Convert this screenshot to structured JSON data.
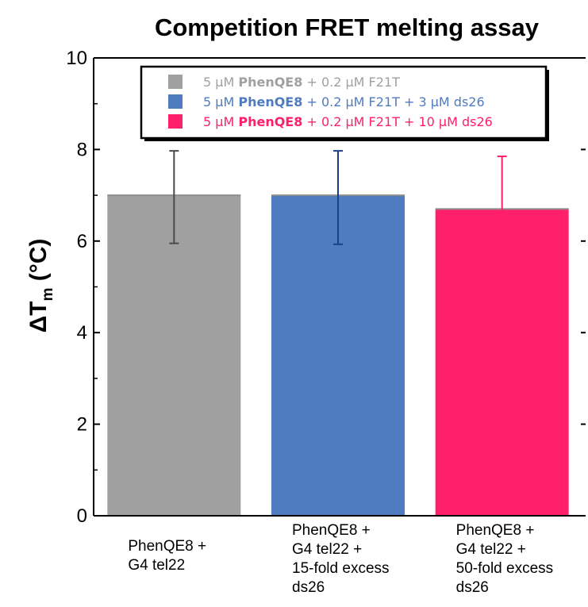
{
  "chart_data": {
    "type": "bar",
    "title": "Competition FRET melting assay",
    "ylabel": {
      "symbol": "ΔT",
      "subscript": "m",
      "unit": "(°C)"
    },
    "ylim": [
      0,
      10
    ],
    "yticks": [
      "0",
      "2",
      "4",
      "6",
      "8",
      "10"
    ],
    "categories": [
      [
        "PhenQE8 +",
        "G4 tel22"
      ],
      [
        "PhenQE8 +",
        "G4 tel22 +",
        "15-fold excess",
        "ds26"
      ],
      [
        "PhenQE8 +",
        "G4 tel22 +",
        "50-fold excess",
        "ds26"
      ]
    ],
    "values": [
      7.0,
      7.0,
      6.7
    ],
    "errors": [
      [
        5.95,
        7.97
      ],
      [
        5.93,
        7.97
      ],
      [
        5.52,
        7.85
      ]
    ],
    "colors": [
      "#a0a0a0",
      "#4f7cc0",
      "#ff1f6b"
    ],
    "error_colors": [
      "#4a4a4a",
      "#1c3f8a",
      "#ff1f6b"
    ],
    "legend": {
      "position": "top-center",
      "entries": [
        {
          "pre": "5 μM ",
          "bold": "PhenQE8",
          "post": " + 0.2 μM F21T",
          "color": "#a0a0a0"
        },
        {
          "pre": "5 μM ",
          "bold": "PhenQE8",
          "post": " + 0.2 μM F21T + 3 μM ds26",
          "color": "#4f7cc0"
        },
        {
          "pre": "5 μM ",
          "bold": "PhenQE8",
          "post": " + 0.2 μM F21T + 10 μM ds26",
          "color": "#ff1f6b"
        }
      ]
    }
  }
}
